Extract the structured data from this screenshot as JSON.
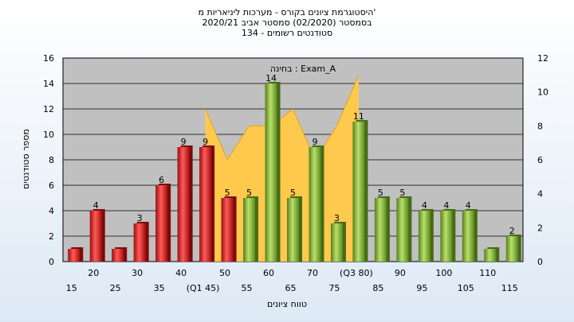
{
  "title_lines": [
    "היסטוגרמת ציונים בקורס - מערכות ליניאריות מ'",
    "בסמסטר (02/2020) סמסטר אביב 2020/21",
    "134 - סטודנטים רשומים"
  ],
  "chart_data": {
    "type": "bar",
    "title": "היסטוגרמת ציונים בקורס - מערכות ליניאריות מ'",
    "xlabel": "טווח ציונים",
    "ylabel": "מספר סטודנטים",
    "ylim": [
      0,
      16
    ],
    "y2lim": [
      0,
      12
    ],
    "yticks": [
      0,
      2,
      4,
      6,
      8,
      10,
      12,
      14,
      16
    ],
    "y2ticks": [
      0,
      2,
      4,
      6,
      8,
      10,
      12
    ],
    "grid": true,
    "legend": "none",
    "annotation": "בחינה : Exam_A",
    "categories": [
      "15",
      "20",
      "25",
      "30",
      "35",
      "40",
      "(Q1 45)",
      "50",
      "55",
      "60",
      "65",
      "70",
      "75",
      "(Q3 80)",
      "85",
      "90",
      "95",
      "100",
      "105",
      "110",
      "115"
    ],
    "values": [
      1,
      4,
      1,
      3,
      6,
      9,
      9,
      5,
      5,
      14,
      5,
      9,
      3,
      11,
      5,
      5,
      4,
      4,
      4,
      1,
      2
    ],
    "data_labels": [
      "",
      "4",
      "",
      "3",
      "6",
      "9",
      "9",
      "5",
      "5",
      "14",
      "5",
      "9",
      "3",
      "11",
      "5",
      "5",
      "4",
      "4",
      "4",
      "",
      "2"
    ],
    "bar_colors": [
      "red",
      "red",
      "red",
      "red",
      "red",
      "red",
      "red",
      "red",
      "green",
      "green",
      "green",
      "green",
      "green",
      "green",
      "green",
      "green",
      "green",
      "green",
      "green",
      "green",
      "green"
    ],
    "area_series": {
      "axis": "secondary",
      "x": [
        "(Q1 45)",
        "50",
        "55",
        "60",
        "65",
        "70",
        "75",
        "(Q3 80)"
      ],
      "values": [
        9,
        6,
        8,
        8,
        9,
        6,
        8,
        11
      ]
    },
    "colors": {
      "red": "#e02020",
      "green": "#8cc63f",
      "area": "#ffc94d",
      "plot_bg": "#c0c0c0"
    }
  }
}
